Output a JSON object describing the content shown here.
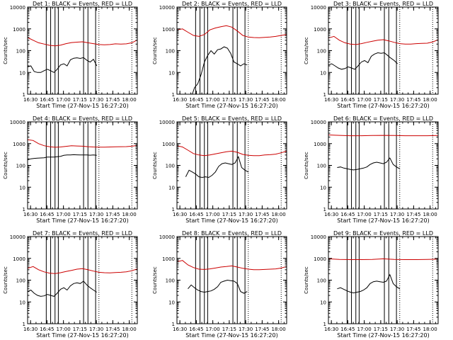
{
  "figure": {
    "background": "#ffffff",
    "events_color": "#000000",
    "lld_color": "#cc0000",
    "axis_color": "#000000"
  },
  "shared_axes": {
    "xlabel": "Start Time (27-Nov-15 16:27:20)",
    "ylabel": "Counts/sec",
    "x_ticks": [
      {
        "label": "16:30",
        "t": 2.67
      },
      {
        "label": "16:45",
        "t": 17.67
      },
      {
        "label": "17:00",
        "t": 32.67
      },
      {
        "label": "17:15",
        "t": 47.67
      },
      {
        "label": "17:30",
        "t": 62.67
      },
      {
        "label": "17:45",
        "t": 77.67
      },
      {
        "label": "18:00",
        "t": 92.67
      }
    ],
    "y_ticks": [
      {
        "label": "1",
        "v": 1
      },
      {
        "label": "10",
        "v": 10
      },
      {
        "label": "100",
        "v": 100
      },
      {
        "label": "1000",
        "v": 1000
      },
      {
        "label": "10000",
        "v": 10000
      }
    ],
    "xlim_minutes": [
      0,
      100
    ],
    "ylim": [
      1,
      10000
    ],
    "y_scale": "log",
    "solid_vlines_minutes": [
      17,
      21,
      25,
      28,
      51,
      55,
      62
    ],
    "dotted_vlines_minutes": [
      65,
      95
    ]
  },
  "chart_data": [
    {
      "type": "line",
      "title": "Det 1: BLACK = Events, RED = LLD",
      "series": [
        {
          "name": "Events",
          "x": [
            0,
            3,
            6,
            9,
            12,
            15,
            18,
            21,
            24,
            27,
            30,
            33,
            36,
            39,
            42,
            45,
            48,
            51,
            54,
            57,
            60,
            63
          ],
          "values": [
            18,
            20,
            11,
            10,
            10,
            12,
            14,
            12,
            10,
            14,
            22,
            25,
            20,
            38,
            45,
            47,
            44,
            48,
            36,
            30,
            40,
            20
          ]
        },
        {
          "name": "LLD",
          "x": [
            0,
            5,
            10,
            15,
            20,
            25,
            30,
            35,
            40,
            45,
            50,
            55,
            60,
            65,
            70,
            75,
            80,
            85,
            90,
            95,
            100
          ],
          "values": [
            400,
            300,
            230,
            200,
            175,
            165,
            180,
            210,
            235,
            245,
            255,
            230,
            210,
            190,
            185,
            190,
            205,
            200,
            205,
            230,
            310
          ]
        }
      ]
    },
    {
      "type": "line",
      "title": "Det 2: BLACK = Events, RED = LLD",
      "series": [
        {
          "name": "Events",
          "x": [
            14,
            16,
            19,
            22,
            25,
            28,
            31,
            34,
            37,
            40,
            43,
            46,
            49,
            52,
            55,
            58,
            61,
            64
          ],
          "values": [
            1,
            2,
            3,
            8,
            30,
            60,
            100,
            70,
            110,
            120,
            150,
            130,
            75,
            30,
            25,
            20,
            25,
            22
          ]
        },
        {
          "name": "LLD",
          "x": [
            0,
            5,
            10,
            15,
            20,
            25,
            30,
            35,
            40,
            45,
            50,
            55,
            60,
            65,
            70,
            75,
            80,
            85,
            90,
            95,
            100
          ],
          "values": [
            900,
            1000,
            700,
            500,
            450,
            550,
            900,
            1100,
            1250,
            1400,
            1200,
            800,
            500,
            420,
            400,
            390,
            410,
            420,
            450,
            500,
            550
          ]
        }
      ]
    },
    {
      "type": "line",
      "title": "Det 3: BLACK = Events, RED = LLD",
      "series": [
        {
          "name": "Events",
          "x": [
            0,
            3,
            6,
            9,
            12,
            15,
            18,
            21,
            24,
            27,
            30,
            33,
            36,
            39,
            42,
            45,
            48,
            51,
            54,
            57,
            60,
            63
          ],
          "values": [
            22,
            25,
            20,
            16,
            14,
            15,
            18,
            16,
            14,
            20,
            30,
            35,
            28,
            55,
            70,
            80,
            75,
            80,
            60,
            45,
            35,
            25
          ]
        },
        {
          "name": "LLD",
          "x": [
            0,
            5,
            10,
            15,
            20,
            25,
            30,
            35,
            40,
            45,
            50,
            55,
            60,
            65,
            70,
            75,
            80,
            85,
            90,
            95,
            100
          ],
          "values": [
            380,
            450,
            300,
            230,
            200,
            190,
            210,
            240,
            270,
            300,
            320,
            280,
            240,
            210,
            200,
            200,
            210,
            215,
            220,
            250,
            320
          ]
        }
      ]
    },
    {
      "type": "line",
      "title": "Det 4: BLACK = Events, RED = LLD",
      "series": [
        {
          "name": "Events",
          "x": [
            0,
            3,
            6,
            9,
            12,
            15,
            18,
            21,
            24,
            27,
            30,
            33,
            36,
            39,
            42,
            45,
            48,
            51,
            54,
            57,
            60,
            63
          ],
          "values": [
            180,
            200,
            210,
            215,
            220,
            225,
            240,
            240,
            240,
            250,
            260,
            290,
            300,
            300,
            310,
            305,
            300,
            300,
            300,
            295,
            300,
            290
          ]
        },
        {
          "name": "LLD",
          "x": [
            0,
            5,
            10,
            15,
            20,
            25,
            30,
            35,
            40,
            45,
            50,
            55,
            60,
            65,
            70,
            75,
            80,
            85,
            90,
            95,
            100
          ],
          "values": [
            1500,
            1400,
            1000,
            800,
            720,
            680,
            700,
            750,
            800,
            780,
            760,
            720,
            700,
            690,
            690,
            700,
            710,
            720,
            730,
            760,
            820
          ]
        }
      ]
    },
    {
      "type": "line",
      "title": "Det 5: BLACK = Events, RED = LLD",
      "series": [
        {
          "name": "Events",
          "x": [
            8,
            11,
            14,
            17,
            20,
            23,
            26,
            29,
            32,
            35,
            38,
            41,
            44,
            47,
            50,
            53,
            56,
            59,
            62,
            65
          ],
          "values": [
            30,
            60,
            50,
            40,
            30,
            28,
            30,
            28,
            35,
            50,
            90,
            120,
            130,
            120,
            110,
            130,
            250,
            80,
            60,
            50
          ]
        },
        {
          "name": "LLD",
          "x": [
            0,
            5,
            10,
            15,
            20,
            25,
            30,
            35,
            40,
            45,
            50,
            55,
            60,
            65,
            70,
            75,
            80,
            85,
            90,
            95,
            100
          ],
          "values": [
            800,
            700,
            500,
            350,
            300,
            280,
            300,
            340,
            380,
            420,
            450,
            400,
            320,
            290,
            280,
            280,
            300,
            310,
            330,
            380,
            450
          ]
        }
      ]
    },
    {
      "type": "line",
      "title": "Det 6: BLACK = Events, RED = LLD",
      "series": [
        {
          "name": "Events",
          "x": [
            8,
            11,
            14,
            17,
            20,
            23,
            26,
            29,
            32,
            35,
            38,
            41,
            44,
            47,
            50,
            53,
            56,
            59,
            62,
            65
          ],
          "values": [
            80,
            85,
            75,
            70,
            65,
            62,
            65,
            70,
            75,
            85,
            110,
            130,
            140,
            130,
            120,
            140,
            220,
            110,
            85,
            70
          ]
        },
        {
          "name": "LLD",
          "x": [
            0,
            10,
            20,
            30,
            40,
            50,
            60,
            70,
            80,
            90,
            100
          ],
          "values": [
            2500,
            2400,
            2300,
            2300,
            2350,
            2400,
            2350,
            2300,
            2300,
            2300,
            2350
          ]
        }
      ]
    },
    {
      "type": "line",
      "title": "Det 7: BLACK = Events, RED = LLD",
      "series": [
        {
          "name": "Events",
          "x": [
            0,
            3,
            6,
            9,
            12,
            15,
            18,
            21,
            24,
            27,
            30,
            33,
            36,
            39,
            42,
            45,
            48,
            51,
            54,
            57,
            60,
            63
          ],
          "values": [
            30,
            35,
            25,
            20,
            18,
            19,
            22,
            20,
            18,
            25,
            38,
            45,
            35,
            55,
            70,
            75,
            70,
            90,
            60,
            45,
            35,
            28
          ]
        },
        {
          "name": "LLD",
          "x": [
            0,
            5,
            10,
            15,
            20,
            25,
            30,
            35,
            40,
            45,
            50,
            55,
            60,
            65,
            70,
            75,
            80,
            85,
            90,
            95,
            100
          ],
          "values": [
            350,
            420,
            300,
            240,
            210,
            200,
            220,
            250,
            280,
            320,
            340,
            300,
            260,
            230,
            220,
            215,
            225,
            230,
            240,
            270,
            330
          ]
        }
      ]
    },
    {
      "type": "line",
      "title": "Det 8: BLACK = Events, RED = LLD",
      "series": [
        {
          "name": "Events",
          "x": [
            10,
            13,
            16,
            19,
            22,
            25,
            28,
            31,
            34,
            37,
            40,
            43,
            46,
            49,
            52,
            55,
            58,
            61,
            64
          ],
          "values": [
            40,
            60,
            45,
            35,
            30,
            28,
            30,
            32,
            38,
            50,
            80,
            90,
            100,
            95,
            90,
            70,
            30,
            25,
            30
          ]
        },
        {
          "name": "LLD",
          "x": [
            0,
            5,
            10,
            15,
            20,
            25,
            30,
            35,
            40,
            45,
            50,
            55,
            60,
            65,
            70,
            75,
            80,
            85,
            90,
            95,
            100
          ],
          "values": [
            700,
            800,
            500,
            380,
            320,
            310,
            330,
            360,
            400,
            420,
            450,
            400,
            350,
            320,
            300,
            300,
            310,
            320,
            330,
            360,
            420
          ]
        }
      ]
    },
    {
      "type": "line",
      "title": "Det 9: BLACK = Events, RED = LLD",
      "series": [
        {
          "name": "Events",
          "x": [
            8,
            11,
            14,
            17,
            20,
            23,
            26,
            29,
            32,
            35,
            38,
            41,
            44,
            47,
            50,
            53,
            56,
            59,
            62,
            65
          ],
          "values": [
            40,
            45,
            38,
            32,
            28,
            26,
            28,
            30,
            35,
            45,
            70,
            85,
            90,
            85,
            80,
            90,
            180,
            70,
            50,
            40
          ]
        },
        {
          "name": "LLD",
          "x": [
            0,
            10,
            20,
            30,
            40,
            50,
            60,
            70,
            80,
            90,
            100
          ],
          "values": [
            950,
            900,
            880,
            880,
            900,
            950,
            900,
            880,
            880,
            890,
            920
          ]
        }
      ]
    }
  ]
}
